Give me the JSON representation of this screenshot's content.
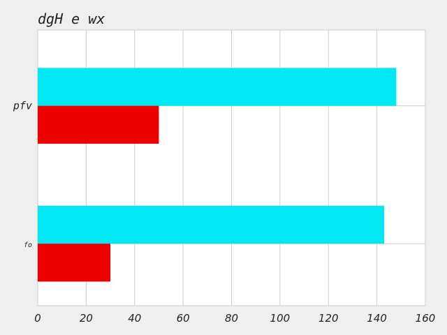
{
  "chart_data": {
    "type": "bar",
    "orientation": "horizontal",
    "title": "dgH e wx",
    "categories": [
      "pfv",
      "fo"
    ],
    "series": [
      {
        "name": "series-1",
        "color": "#00e8f4",
        "values": [
          148,
          143
        ]
      },
      {
        "name": "series-2",
        "color": "#ee0000",
        "values": [
          50,
          30
        ]
      }
    ],
    "xlim": [
      0,
      160
    ],
    "xticks": [
      "0",
      "20",
      "40",
      "60",
      "80",
      "100",
      "120",
      "140",
      "160"
    ],
    "grid": true,
    "xlabel": "",
    "ylabel": ""
  }
}
